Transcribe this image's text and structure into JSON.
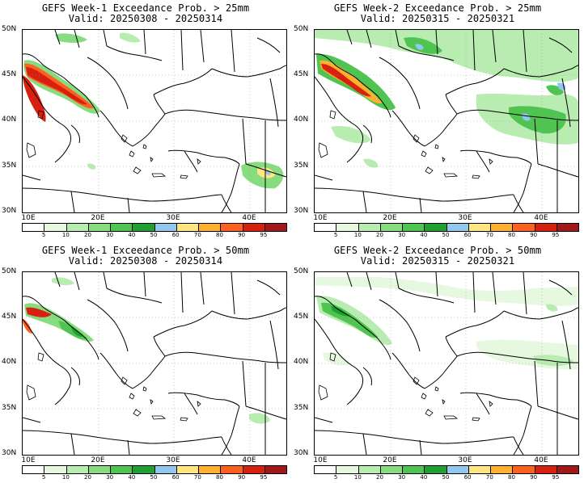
{
  "panels": [
    {
      "title_line1": "GEFS Week-1 Exceedance Prob. > 25mm",
      "title_line2": "Valid: 20250308 - 20250314"
    },
    {
      "title_line1": "GEFS Week-2 Exceedance Prob. > 25mm",
      "title_line2": "Valid: 20250315 - 20250321"
    },
    {
      "title_line1": "GEFS Week-1 Exceedance Prob. > 50mm",
      "title_line2": "Valid: 20250308 - 20250314"
    },
    {
      "title_line1": "GEFS Week-2 Exceedance Prob. > 50mm",
      "title_line2": "Valid: 20250315 - 20250321"
    }
  ],
  "axes": {
    "lat_labels": [
      "50N",
      "45N",
      "40N",
      "35N",
      "30N"
    ],
    "lon_labels": [
      "10E",
      "20E",
      "30E",
      "40E"
    ]
  },
  "colorbar": {
    "ticks": [
      "5",
      "10",
      "20",
      "30",
      "40",
      "50",
      "60",
      "70",
      "80",
      "90",
      "95"
    ],
    "colors": [
      "#ffffff",
      "#e6f8e0",
      "#b8ecb0",
      "#88dc80",
      "#50c450",
      "#20a030",
      "#90c8f0",
      "#ffe680",
      "#ffb030",
      "#ff6020",
      "#d82010",
      "#a01818"
    ]
  }
}
